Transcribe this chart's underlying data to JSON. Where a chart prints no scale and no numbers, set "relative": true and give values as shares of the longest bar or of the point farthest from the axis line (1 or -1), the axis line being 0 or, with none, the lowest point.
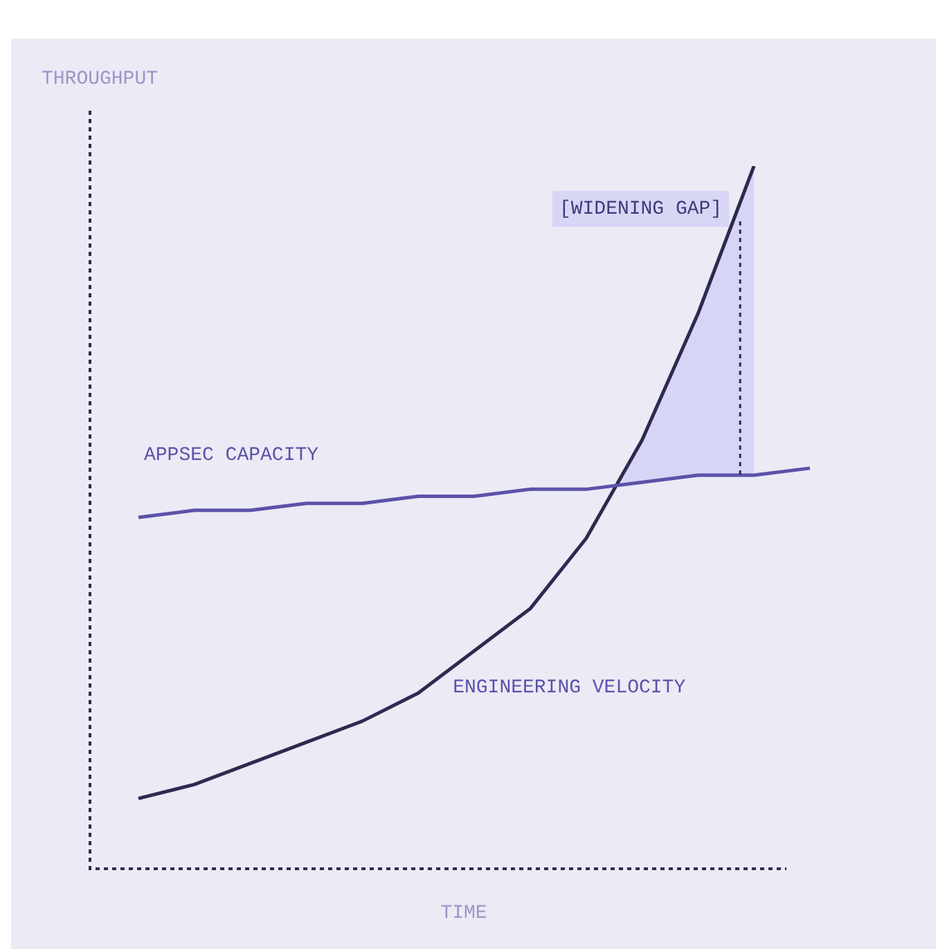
{
  "chart_data": {
    "type": "line",
    "relative": true,
    "xlabel": "TIME",
    "ylabel": "THROUGHPUT",
    "categories": [
      null,
      null,
      null,
      null,
      null,
      null,
      null,
      null,
      null,
      null,
      null,
      null,
      null
    ],
    "series": [
      {
        "name": "APPSEC CAPACITY",
        "color": "#5b52a8",
        "values": [
          0.5,
          0.51,
          0.51,
          0.52,
          0.52,
          0.53,
          0.53,
          0.54,
          0.54,
          0.55,
          0.56,
          0.56,
          0.57
        ]
      },
      {
        "name": "ENGINEERING VELOCITY",
        "color": "#2e2a4f",
        "values": [
          0.1,
          0.12,
          0.15,
          0.18,
          0.21,
          0.25,
          0.31,
          0.37,
          0.47,
          0.61,
          0.79,
          1.0,
          null
        ]
      }
    ],
    "annotations": [
      "[WIDENING GAP]"
    ],
    "legend": false,
    "marker": "none",
    "line_style": "solid"
  }
}
